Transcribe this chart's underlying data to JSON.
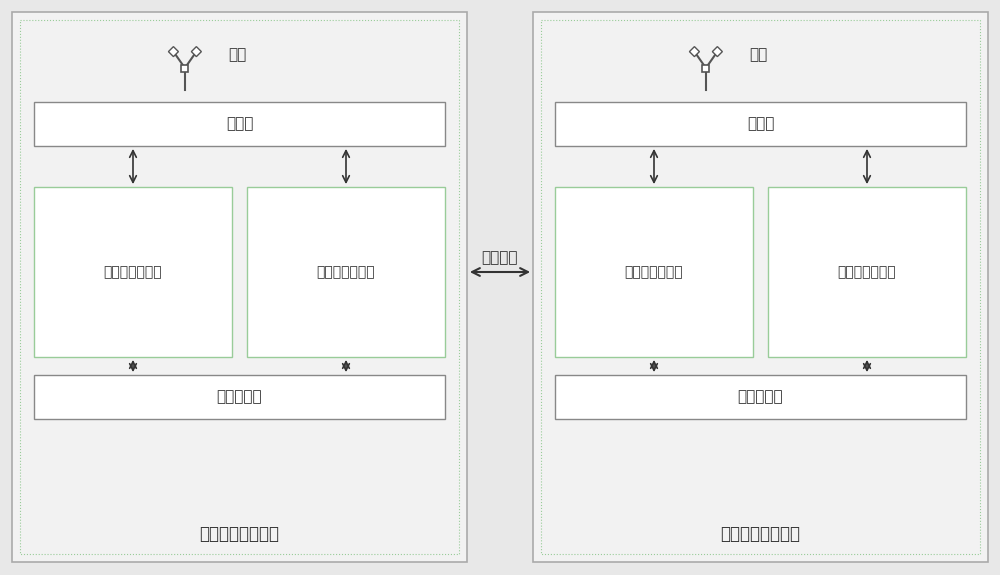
{
  "bg_color": "#e8e8e8",
  "outer_fill_color": "#f2f2f2",
  "outer_border_color": "#aaaaaa",
  "inner_dotted_color": "#99cc99",
  "box_fill_color": "#ffffff",
  "box_border_color": "#888888",
  "hf_lf_border_color": "#99cc99",
  "arrow_color": "#333333",
  "text_color": "#333333",
  "station1_label": "第一无线通信基站",
  "station2_label": "第二无线通信基站",
  "wireless_label": "无线通信",
  "antenna_label": "天线",
  "duplexer_label": "双工器",
  "hf_label": "高频段收发模块",
  "lf_label": "低频段收发模块",
  "channel_label": "信道控制器",
  "font_size": 11,
  "small_font_size": 10,
  "label_font_size": 12
}
